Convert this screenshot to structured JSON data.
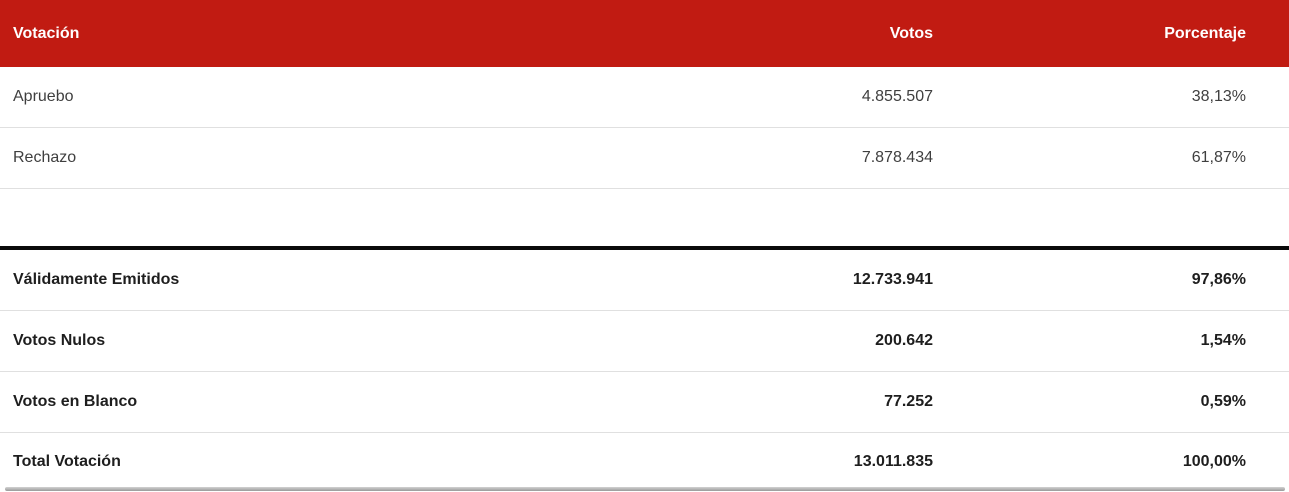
{
  "colors": {
    "header_bg": "#c11b12",
    "header_text": "#ffffff",
    "row_text": "#3f3f3f",
    "summary_text": "#1e1e1e",
    "divider": "#e0e0e0",
    "thick_divider": "#0a0a0a",
    "scrollbar": "#9a9a9a"
  },
  "table": {
    "columns": [
      {
        "label": "Votación"
      },
      {
        "label": "Votos"
      },
      {
        "label": "Porcentaje"
      }
    ],
    "rows": [
      {
        "label": "Apruebo",
        "votes": "4.855.507",
        "pct": "38,13%"
      },
      {
        "label": "Rechazo",
        "votes": "7.878.434",
        "pct": "61,87%"
      }
    ],
    "summary_rows": [
      {
        "label": "Válidamente Emitidos",
        "votes": "12.733.941",
        "pct": "97,86%"
      },
      {
        "label": "Votos Nulos",
        "votes": "200.642",
        "pct": "1,54%"
      },
      {
        "label": "Votos en Blanco",
        "votes": "77.252",
        "pct": "0,59%"
      },
      {
        "label": "Total Votación",
        "votes": "13.011.835",
        "pct": "100,00%"
      }
    ]
  },
  "chart_data": {
    "type": "table",
    "title": "Votación",
    "columns": [
      "Votación",
      "Votos",
      "Porcentaje"
    ],
    "rows": [
      [
        "Apruebo",
        "4.855.507",
        "38,13%"
      ],
      [
        "Rechazo",
        "7.878.434",
        "61,87%"
      ]
    ],
    "summary_rows": [
      [
        "Válidamente Emitidos",
        "12.733.941",
        "97,86%"
      ],
      [
        "Votos Nulos",
        "200.642",
        "1,54%"
      ],
      [
        "Votos en Blanco",
        "77.252",
        "0,59%"
      ],
      [
        "Total Votación",
        "13.011.835",
        "100,00%"
      ]
    ],
    "values_numeric": {
      "apruebo_votes": 4855507,
      "apruebo_pct": 38.13,
      "rechazo_votes": 7878434,
      "rechazo_pct": 61.87,
      "validamente_emitidos_votes": 12733941,
      "validamente_emitidos_pct": 97.86,
      "votos_nulos_votes": 200642,
      "votos_nulos_pct": 1.54,
      "votos_en_blanco_votes": 77252,
      "votos_en_blanco_pct": 0.59,
      "total_votacion_votes": 13011835,
      "total_votacion_pct": 100.0
    }
  }
}
